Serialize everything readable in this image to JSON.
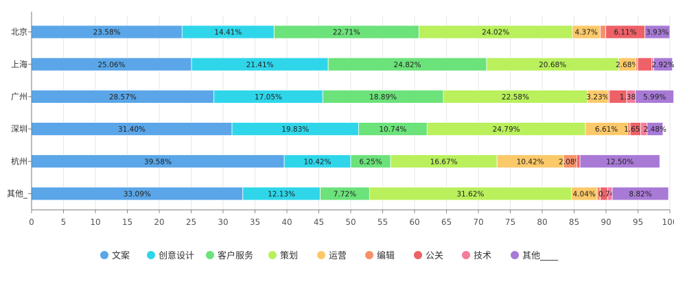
{
  "chart_data": {
    "type": "bar",
    "orientation": "horizontal",
    "stacked": true,
    "title": "",
    "xlabel": "",
    "ylabel": "",
    "xlim": [
      0,
      100
    ],
    "x_ticks": [
      0,
      5,
      10,
      15,
      20,
      25,
      30,
      35,
      40,
      45,
      50,
      55,
      60,
      65,
      70,
      75,
      80,
      85,
      90,
      95,
      100
    ],
    "grid": true,
    "legend_position": "bottom",
    "categories": [
      "北京",
      "上海",
      "广州",
      "深圳",
      "杭州",
      "其他_"
    ],
    "series": [
      {
        "name": "文案",
        "color": "#5aa6e8",
        "values": [
          23.58,
          25.06,
          28.57,
          31.4,
          39.58,
          33.09
        ],
        "labels": [
          "23.58%",
          "25.06%",
          "28.57%",
          "31.40%",
          "39.58%",
          "33.09%"
        ]
      },
      {
        "name": "创意设计",
        "color": "#2fd6ea",
        "values": [
          14.41,
          21.41,
          17.05,
          19.83,
          10.42,
          12.13
        ],
        "labels": [
          "14.41%",
          "21.41%",
          "17.05%",
          "19.83%",
          "10.42%",
          "12.13%"
        ]
      },
      {
        "name": "客户服务",
        "color": "#6ce27a",
        "values": [
          22.71,
          24.82,
          18.89,
          10.74,
          6.25,
          7.72
        ],
        "labels": [
          "22.71%",
          "24.82%",
          "18.89%",
          "10.74%",
          "6.25%",
          "7.72%"
        ]
      },
      {
        "name": "策划",
        "color": "#b9f05c",
        "values": [
          24.02,
          20.68,
          22.58,
          24.79,
          16.67,
          31.62
        ],
        "labels": [
          "24.02%",
          "20.68%",
          "22.58%",
          "24.79%",
          "16.67%",
          "31.62%"
        ]
      },
      {
        "name": "运营",
        "color": "#fbc96a",
        "values": [
          4.37,
          2.68,
          3.23,
          6.61,
          10.42,
          4.04
        ],
        "labels": [
          "4.37%",
          "2.68%",
          "3.23%",
          "6.61%",
          "10.42%",
          "4.04%"
        ]
      },
      {
        "name": "编辑",
        "color": "#f7916a",
        "values": [
          0.87,
          0.3,
          0.2,
          0.41,
          2.08,
          0.5
        ],
        "labels": [
          "",
          "",
          "",
          "",
          "2.08%",
          ""
        ]
      },
      {
        "name": "公关",
        "color": "#ee6167",
        "values": [
          6.11,
          2.23,
          2.71,
          1.65,
          0.5,
          1.13
        ],
        "labels": [
          "6.11%",
          "",
          "",
          "1.65%",
          "",
          ""
        ]
      },
      {
        "name": "技术",
        "color": "#f47c9c",
        "values": [
          0.0,
          0.3,
          1.38,
          1.0,
          0.0,
          0.74
        ],
        "labels": [
          "",
          "",
          "1.38%",
          "",
          "",
          "0.74%"
        ]
      },
      {
        "name": "其他____",
        "color": "#a87ad6",
        "values": [
          3.93,
          2.92,
          5.99,
          2.48,
          12.5,
          8.82
        ],
        "labels": [
          "3.93%",
          "2.92%",
          "5.99%",
          "2.48%",
          "12.50%",
          "8.82%"
        ]
      }
    ]
  }
}
